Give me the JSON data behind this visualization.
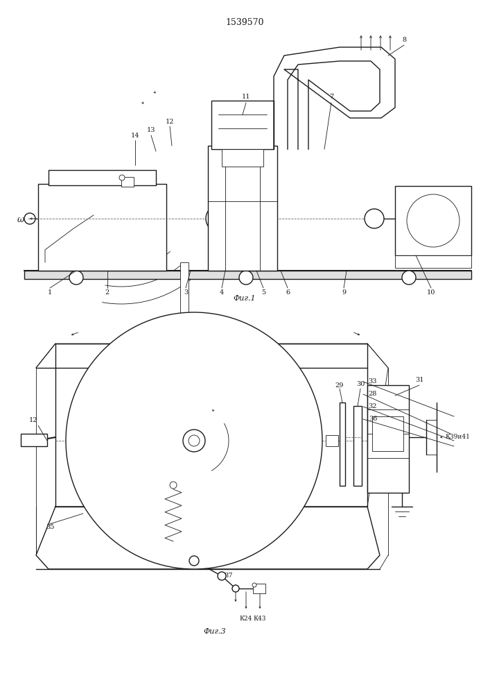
{
  "title": "1539570",
  "fig1_label": "Фиг.1",
  "fig3_label": "Фиг.3",
  "bg_color": "#ffffff",
  "line_color": "#1a1a1a",
  "lw": 1.0,
  "tlw": 0.6
}
